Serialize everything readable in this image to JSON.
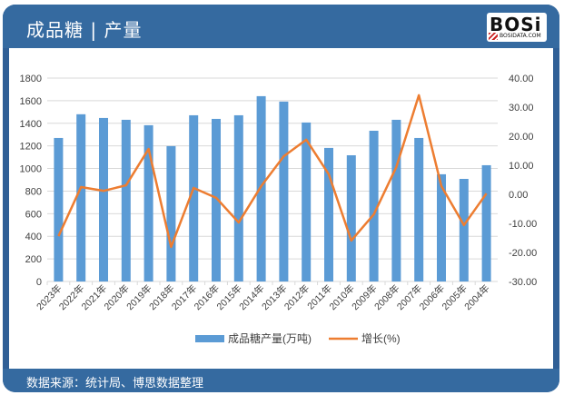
{
  "header": {
    "title": "成品糖 | 产量",
    "logo_text": "BOSi",
    "logo_sub": "BOSIDATA.COM"
  },
  "footer": {
    "source": "数据来源：统计局、博思数据整理"
  },
  "legend": {
    "bar_label": "成品糖产量(万吨)",
    "line_label": "增长(%)"
  },
  "colors": {
    "bar": "#5b9bd5",
    "line": "#ed7d31",
    "header": "#356aa0"
  },
  "chart_data": {
    "type": "bar+line",
    "title": "成品糖 | 产量",
    "categories": [
      "2023年",
      "2022年",
      "2021年",
      "2020年",
      "2019年",
      "2018年",
      "2017年",
      "2016年",
      "2015年",
      "2014年",
      "2013年",
      "2012年",
      "2011年",
      "2010年",
      "2009年",
      "2008年",
      "2007年",
      "2006年",
      "2005年",
      "2004年"
    ],
    "series": [
      {
        "name": "成品糖产量(万吨)",
        "type": "bar",
        "axis": "left",
        "values": [
          1270,
          1480,
          1447,
          1431,
          1383,
          1198,
          1471,
          1439,
          1471,
          1640,
          1592,
          1407,
          1182,
          1117,
          1334,
          1431,
          1270,
          949,
          908,
          1029
        ]
      },
      {
        "name": "增长(%)",
        "type": "line",
        "axis": "right",
        "values": [
          -14.4,
          2.5,
          1.2,
          3.1,
          15.6,
          -18.1,
          2.2,
          -1.2,
          -9.7,
          2.8,
          13.1,
          18.8,
          6.9,
          -15.9,
          -6.9,
          9.4,
          34.1,
          2.8,
          -10.6,
          0.3
        ]
      }
    ],
    "left_axis": {
      "ylim": [
        0,
        1800
      ],
      "ticks": [
        "0",
        "200",
        "400",
        "600",
        "800",
        "1000",
        "1200",
        "1400",
        "1600",
        "1800"
      ]
    },
    "right_axis": {
      "ylim": [
        -30,
        40
      ],
      "ticks": [
        "-30.00",
        "-20.00",
        "-10.00",
        "0.00",
        "10.00",
        "20.00",
        "30.00",
        "40.00"
      ]
    },
    "grid": true,
    "legend_position": "bottom"
  }
}
